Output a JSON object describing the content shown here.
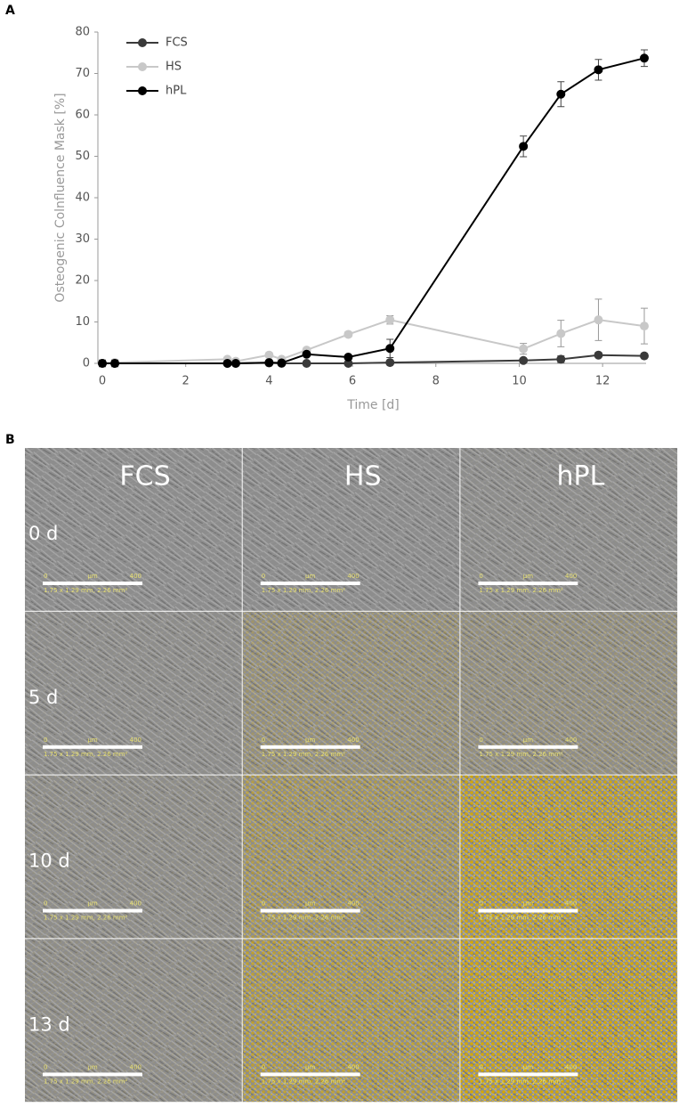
{
  "panels": [
    "A",
    "B"
  ],
  "chart_data": {
    "type": "line",
    "x_label": "Time [d]",
    "y_label": "Osteogenic Colnfluence Mask [%]",
    "x": [
      0,
      0.3,
      3,
      3.2,
      4,
      4.3,
      4.9,
      5.9,
      6.9,
      10.1,
      11,
      11.9,
      13
    ],
    "series": [
      {
        "name": "FCS",
        "color": "#3a3a3a",
        "values": [
          0,
          0,
          0,
          0,
          0.1,
          0,
          0,
          0,
          0.2,
          0.7,
          1.0,
          2.0,
          1.8
        ],
        "errors": [
          0.3,
          0.3,
          0.2,
          0.2,
          0.2,
          0.2,
          0.2,
          0.2,
          0.3,
          0.4,
          0.8,
          0.5,
          0.5
        ]
      },
      {
        "name": "HS",
        "color": "#c8c8c8",
        "values": [
          0,
          0.2,
          1.0,
          0.5,
          2.0,
          1.0,
          3.2,
          7.0,
          10.5,
          3.5,
          7.2,
          10.5,
          9.0
        ],
        "errors": [
          0.3,
          0.3,
          0.3,
          0.3,
          0.4,
          0.4,
          0.5,
          0.6,
          1.0,
          1.3,
          3.2,
          5.0,
          4.3
        ]
      },
      {
        "name": "hPL",
        "color": "#000000",
        "values": [
          0,
          0,
          0,
          0,
          0.2,
          0.1,
          2.2,
          1.5,
          3.6,
          52.4,
          65.0,
          70.9,
          73.7
        ],
        "errors": [
          0.8,
          0.8,
          0.3,
          0.3,
          0.3,
          0.3,
          0.4,
          0.5,
          2.2,
          2.5,
          3.0,
          2.5,
          2.0
        ]
      }
    ],
    "xlim": [
      0,
      13
    ],
    "xticks": [
      0,
      2,
      4,
      6,
      8,
      10,
      12
    ],
    "ylim": [
      0,
      80
    ],
    "yticks": [
      0,
      10,
      20,
      30,
      40,
      50,
      60,
      70,
      80
    ],
    "grid": false,
    "legend": "upper left"
  },
  "panel_b": {
    "columns": [
      "FCS",
      "HS",
      "hPL"
    ],
    "rows": [
      "0 d",
      "5 d",
      "10 d",
      "13 d"
    ],
    "scale_bar": {
      "start": "0",
      "unit": "μm",
      "end": "400",
      "field": "1.75 x 1.29 mm, 2.26 mm²"
    }
  }
}
